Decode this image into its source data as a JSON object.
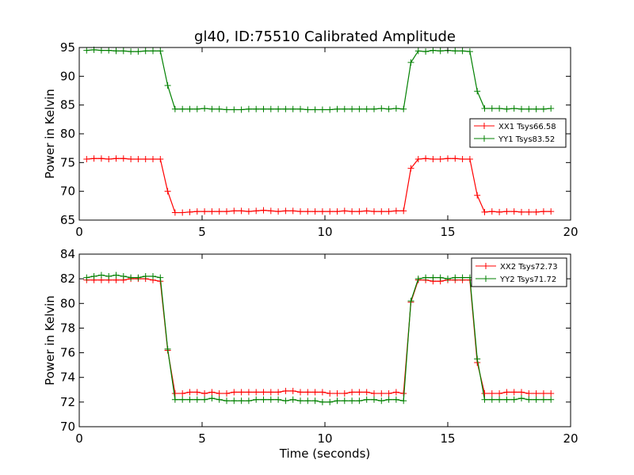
{
  "chart_data": [
    {
      "type": "line",
      "title": "gl40, ID:75510 Calibrated Amplitude",
      "xlabel": "",
      "ylabel": "Power in Kelvin",
      "xlim": [
        0,
        20
      ],
      "ylim": [
        65,
        95
      ],
      "xticks": [
        0,
        5,
        10,
        15,
        20
      ],
      "yticks": [
        65,
        70,
        75,
        80,
        85,
        90,
        95
      ],
      "xtick_labels": [
        "0",
        "5",
        "10",
        "15",
        "20"
      ],
      "ytick_labels": [
        "65",
        "70",
        "75",
        "80",
        "85",
        "90",
        "95"
      ],
      "grid": false,
      "legend_position": "center-right",
      "x": [
        0.3,
        0.6,
        0.9,
        1.2,
        1.5,
        1.8,
        2.1,
        2.4,
        2.7,
        3.0,
        3.3,
        3.6,
        3.9,
        4.2,
        4.5,
        4.8,
        5.1,
        5.4,
        5.7,
        6.0,
        6.3,
        6.6,
        6.9,
        7.2,
        7.5,
        7.8,
        8.1,
        8.4,
        8.7,
        9.0,
        9.3,
        9.6,
        9.9,
        10.2,
        10.5,
        10.8,
        11.1,
        11.4,
        11.7,
        12.0,
        12.3,
        12.6,
        12.9,
        13.2,
        13.5,
        13.8,
        14.1,
        14.4,
        14.7,
        15.0,
        15.3,
        15.6,
        15.9,
        16.2,
        16.5,
        16.8,
        17.1,
        17.4,
        17.7,
        18.0,
        18.3,
        18.6,
        18.9,
        19.2
      ],
      "series": [
        {
          "name": "XX1 Tsys66.58",
          "color": "#ff0000",
          "values": [
            75.6,
            75.7,
            75.7,
            75.6,
            75.7,
            75.7,
            75.6,
            75.6,
            75.6,
            75.6,
            75.6,
            70.0,
            66.3,
            66.3,
            66.4,
            66.5,
            66.5,
            66.5,
            66.5,
            66.5,
            66.6,
            66.6,
            66.5,
            66.6,
            66.7,
            66.6,
            66.5,
            66.6,
            66.6,
            66.5,
            66.5,
            66.5,
            66.5,
            66.5,
            66.5,
            66.6,
            66.5,
            66.5,
            66.6,
            66.5,
            66.5,
            66.5,
            66.6,
            66.6,
            74.0,
            75.6,
            75.7,
            75.6,
            75.6,
            75.7,
            75.7,
            75.6,
            75.6,
            69.3,
            66.4,
            66.5,
            66.4,
            66.5,
            66.5,
            66.4,
            66.4,
            66.4,
            66.5,
            66.5
          ]
        },
        {
          "name": "YY1 Tsys83.52",
          "color": "#008000",
          "values": [
            94.5,
            94.6,
            94.5,
            94.5,
            94.4,
            94.4,
            94.3,
            94.3,
            94.4,
            94.4,
            94.4,
            88.4,
            84.3,
            84.3,
            84.3,
            84.3,
            84.4,
            84.3,
            84.3,
            84.2,
            84.2,
            84.2,
            84.3,
            84.3,
            84.3,
            84.3,
            84.3,
            84.3,
            84.3,
            84.3,
            84.2,
            84.2,
            84.2,
            84.2,
            84.3,
            84.3,
            84.3,
            84.3,
            84.3,
            84.3,
            84.4,
            84.3,
            84.4,
            84.3,
            92.4,
            94.4,
            94.3,
            94.5,
            94.4,
            94.5,
            94.4,
            94.4,
            94.3,
            87.4,
            84.4,
            84.4,
            84.4,
            84.3,
            84.4,
            84.3,
            84.3,
            84.3,
            84.3,
            84.4
          ]
        }
      ]
    },
    {
      "type": "line",
      "title": "",
      "xlabel": "Time (seconds)",
      "ylabel": "Power in Kelvin",
      "xlim": [
        0,
        20
      ],
      "ylim": [
        70,
        84
      ],
      "xticks": [
        0,
        5,
        10,
        15,
        20
      ],
      "yticks": [
        70,
        72,
        74,
        76,
        78,
        80,
        82,
        84
      ],
      "xtick_labels": [
        "0",
        "5",
        "10",
        "15",
        "20"
      ],
      "ytick_labels": [
        "70",
        "72",
        "74",
        "76",
        "78",
        "80",
        "82",
        "84"
      ],
      "grid": false,
      "legend_position": "top-right",
      "x": [
        0.3,
        0.6,
        0.9,
        1.2,
        1.5,
        1.8,
        2.1,
        2.4,
        2.7,
        3.0,
        3.3,
        3.6,
        3.9,
        4.2,
        4.5,
        4.8,
        5.1,
        5.4,
        5.7,
        6.0,
        6.3,
        6.6,
        6.9,
        7.2,
        7.5,
        7.8,
        8.1,
        8.4,
        8.7,
        9.0,
        9.3,
        9.6,
        9.9,
        10.2,
        10.5,
        10.8,
        11.1,
        11.4,
        11.7,
        12.0,
        12.3,
        12.6,
        12.9,
        13.2,
        13.5,
        13.8,
        14.1,
        14.4,
        14.7,
        15.0,
        15.3,
        15.6,
        15.9,
        16.2,
        16.5,
        16.8,
        17.1,
        17.4,
        17.7,
        18.0,
        18.3,
        18.6,
        18.9,
        19.2
      ],
      "series": [
        {
          "name": "XX2 Tsys72.73",
          "color": "#ff0000",
          "values": [
            81.9,
            81.9,
            81.9,
            81.9,
            81.9,
            81.9,
            82.0,
            82.0,
            82.0,
            81.9,
            81.8,
            76.2,
            72.7,
            72.7,
            72.8,
            72.8,
            72.7,
            72.8,
            72.7,
            72.7,
            72.8,
            72.8,
            72.8,
            72.8,
            72.8,
            72.8,
            72.8,
            72.9,
            72.9,
            72.8,
            72.8,
            72.8,
            72.8,
            72.7,
            72.7,
            72.7,
            72.8,
            72.8,
            72.8,
            72.7,
            72.7,
            72.7,
            72.8,
            72.7,
            80.1,
            81.9,
            81.9,
            81.8,
            81.8,
            81.9,
            81.9,
            81.9,
            81.9,
            75.2,
            72.7,
            72.7,
            72.7,
            72.8,
            72.8,
            72.8,
            72.7,
            72.7,
            72.7,
            72.7
          ]
        },
        {
          "name": "YY2 Tsys71.72",
          "color": "#008000",
          "values": [
            82.1,
            82.2,
            82.3,
            82.2,
            82.3,
            82.2,
            82.1,
            82.1,
            82.2,
            82.2,
            82.1,
            76.3,
            72.2,
            72.2,
            72.2,
            72.2,
            72.2,
            72.3,
            72.2,
            72.1,
            72.1,
            72.1,
            72.1,
            72.2,
            72.2,
            72.2,
            72.2,
            72.1,
            72.2,
            72.1,
            72.1,
            72.1,
            72.0,
            72.0,
            72.1,
            72.1,
            72.1,
            72.1,
            72.2,
            72.2,
            72.1,
            72.2,
            72.2,
            72.1,
            80.2,
            82.0,
            82.1,
            82.1,
            82.1,
            82.0,
            82.1,
            82.1,
            82.1,
            75.5,
            72.2,
            72.2,
            72.2,
            72.2,
            72.2,
            72.3,
            72.2,
            72.2,
            72.2,
            72.2
          ]
        }
      ]
    }
  ]
}
